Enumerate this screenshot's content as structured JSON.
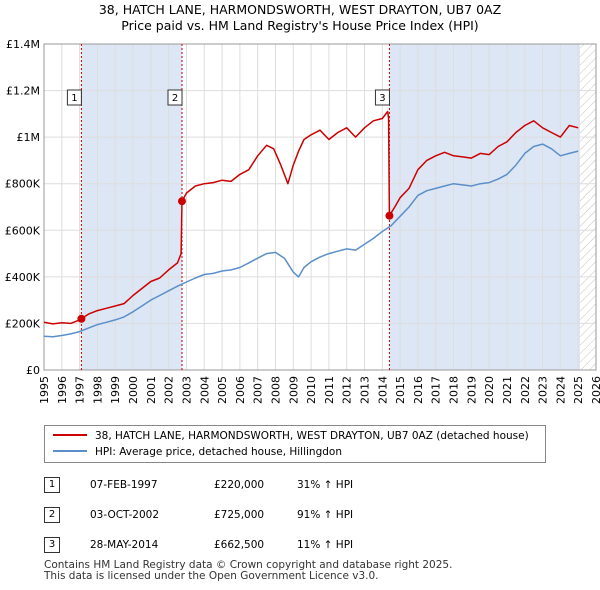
{
  "title": {
    "line1": "38, HATCH LANE, HARMONDSWORTH, WEST DRAYTON, UB7 0AZ",
    "line2": "Price paid vs. HM Land Registry's House Price Index (HPI)"
  },
  "colors": {
    "property_line": "#cc0000",
    "hpi_line": "#5b8fc9",
    "highlight": "#dde6f5",
    "grid": "#dddddd",
    "future_hatch": "#999999"
  },
  "legend": {
    "property_label": "38, HATCH LANE, HARMONDSWORTH, WEST DRAYTON, UB7 0AZ (detached house)",
    "hpi_label": "HPI: Average price, detached house, Hillingdon"
  },
  "sales_table": [
    {
      "num": "1",
      "date": "07-FEB-1997",
      "price": "£220,000",
      "hpi": "31% ↑ HPI"
    },
    {
      "num": "2",
      "date": "03-OCT-2002",
      "price": "£725,000",
      "hpi": "91% ↑ HPI"
    },
    {
      "num": "3",
      "date": "28-MAY-2014",
      "price": "£662,500",
      "hpi": "11% ↑ HPI"
    }
  ],
  "footer": {
    "line1": "Contains HM Land Registry data © Crown copyright and database right 2025.",
    "line2": "This data is licensed under the Open Government Licence v3.0."
  },
  "chart_data": {
    "type": "line",
    "xlim": [
      1995,
      2026
    ],
    "ylim": [
      0,
      1400000
    ],
    "yticks": [
      {
        "value": 0,
        "label": "£0"
      },
      {
        "value": 200000,
        "label": "£200K"
      },
      {
        "value": 400000,
        "label": "£400K"
      },
      {
        "value": 600000,
        "label": "£600K"
      },
      {
        "value": 800000,
        "label": "£800K"
      },
      {
        "value": 1000000,
        "label": "£1M"
      },
      {
        "value": 1200000,
        "label": "£1.2M"
      },
      {
        "value": 1400000,
        "label": "£1.4M"
      }
    ],
    "xticks": [
      1995,
      1996,
      1997,
      1998,
      1999,
      2000,
      2001,
      2002,
      2003,
      2004,
      2005,
      2006,
      2007,
      2008,
      2009,
      2010,
      2011,
      2012,
      2013,
      2014,
      2015,
      2016,
      2017,
      2018,
      2019,
      2020,
      2021,
      2022,
      2023,
      2024,
      2025,
      2026
    ],
    "highlight_ranges": [
      [
        1997.1,
        2002.75
      ],
      [
        2014.4,
        2025.1
      ]
    ],
    "future_from": 2025.1,
    "sales": [
      {
        "label": "1",
        "x": 1997.1,
        "y": 220000
      },
      {
        "label": "2",
        "x": 2002.75,
        "y": 725000
      },
      {
        "label": "3",
        "x": 2014.4,
        "y": 662500
      }
    ],
    "series": [
      {
        "name": "property",
        "x": [
          1995.0,
          1995.5,
          1996.0,
          1996.5,
          1997.0,
          1997.1,
          1997.5,
          1998.0,
          1998.5,
          1999.0,
          1999.5,
          2000.0,
          2000.5,
          2001.0,
          2001.5,
          2002.0,
          2002.5,
          2002.7,
          2002.75,
          2003.0,
          2003.5,
          2004.0,
          2004.5,
          2005.0,
          2005.5,
          2006.0,
          2006.5,
          2007.0,
          2007.5,
          2007.9,
          2008.3,
          2008.7,
          2009.0,
          2009.3,
          2009.6,
          2010.0,
          2010.5,
          2011.0,
          2011.5,
          2012.0,
          2012.5,
          2013.0,
          2013.5,
          2014.0,
          2014.3,
          2014.35,
          2014.4,
          2014.7,
          2015.0,
          2015.5,
          2016.0,
          2016.5,
          2017.0,
          2017.5,
          2018.0,
          2018.5,
          2019.0,
          2019.5,
          2020.0,
          2020.5,
          2021.0,
          2021.5,
          2022.0,
          2022.5,
          2023.0,
          2023.5,
          2024.0,
          2024.5,
          2025.0
        ],
        "y": [
          205000,
          198000,
          203000,
          200000,
          215000,
          220000,
          240000,
          255000,
          265000,
          275000,
          285000,
          320000,
          350000,
          380000,
          395000,
          430000,
          460000,
          500000,
          725000,
          760000,
          790000,
          800000,
          805000,
          815000,
          810000,
          840000,
          860000,
          920000,
          965000,
          950000,
          880000,
          800000,
          880000,
          940000,
          990000,
          1010000,
          1030000,
          990000,
          1020000,
          1040000,
          1000000,
          1040000,
          1070000,
          1080000,
          1110000,
          1080000,
          662500,
          700000,
          740000,
          780000,
          860000,
          900000,
          920000,
          935000,
          920000,
          915000,
          910000,
          930000,
          925000,
          960000,
          980000,
          1020000,
          1050000,
          1070000,
          1040000,
          1020000,
          1000000,
          1050000,
          1040000
        ]
      },
      {
        "name": "hpi",
        "x": [
          1995.0,
          1995.5,
          1996.0,
          1996.5,
          1997.0,
          1997.5,
          1998.0,
          1998.5,
          1999.0,
          1999.5,
          2000.0,
          2000.5,
          2001.0,
          2001.5,
          2002.0,
          2002.5,
          2003.0,
          2003.5,
          2004.0,
          2004.5,
          2005.0,
          2005.5,
          2006.0,
          2006.5,
          2007.0,
          2007.5,
          2008.0,
          2008.5,
          2009.0,
          2009.3,
          2009.6,
          2010.0,
          2010.5,
          2011.0,
          2011.5,
          2012.0,
          2012.5,
          2013.0,
          2013.5,
          2014.0,
          2014.5,
          2015.0,
          2015.5,
          2016.0,
          2016.5,
          2017.0,
          2017.5,
          2018.0,
          2018.5,
          2019.0,
          2019.5,
          2020.0,
          2020.5,
          2021.0,
          2021.5,
          2022.0,
          2022.5,
          2023.0,
          2023.5,
          2024.0,
          2024.5,
          2025.0
        ],
        "y": [
          145000,
          143000,
          148000,
          155000,
          165000,
          180000,
          195000,
          205000,
          215000,
          228000,
          250000,
          275000,
          300000,
          320000,
          340000,
          360000,
          378000,
          395000,
          410000,
          415000,
          425000,
          430000,
          440000,
          460000,
          480000,
          500000,
          505000,
          480000,
          420000,
          400000,
          440000,
          465000,
          485000,
          500000,
          510000,
          520000,
          515000,
          540000,
          565000,
          595000,
          620000,
          660000,
          700000,
          750000,
          770000,
          780000,
          790000,
          800000,
          795000,
          790000,
          800000,
          805000,
          820000,
          840000,
          880000,
          930000,
          960000,
          970000,
          950000,
          920000,
          930000,
          940000
        ]
      }
    ]
  }
}
